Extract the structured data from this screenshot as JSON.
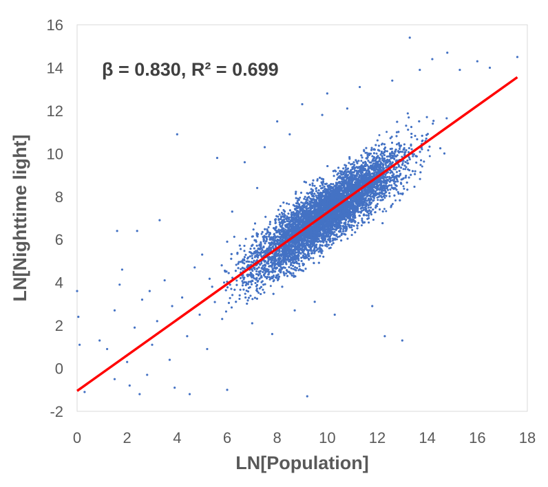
{
  "chart_data": {
    "type": "scatter",
    "title": "",
    "xlabel": "LN[Population]",
    "ylabel": "LN[Nighttime light]",
    "xlim": [
      0,
      18
    ],
    "ylim": [
      -2,
      16
    ],
    "xticks": [
      0,
      2,
      4,
      6,
      8,
      10,
      12,
      14,
      16,
      18
    ],
    "yticks": [
      -2,
      0,
      2,
      4,
      6,
      8,
      10,
      12,
      14,
      16
    ],
    "grid": false,
    "annotation": "β = 0.830, R² = 0.699",
    "marker_color": "#4472C4",
    "line_color": "#FF0000",
    "trendline": {
      "slope": 0.83,
      "intercept": -1.05,
      "x_range": [
        0,
        17.6
      ]
    },
    "series": [
      {
        "points": [
          [
            0.0,
            3.6
          ],
          [
            0.05,
            2.4
          ],
          [
            0.1,
            1.1
          ],
          [
            0.3,
            -1.1
          ],
          [
            0.9,
            1.3
          ],
          [
            1.2,
            0.9
          ],
          [
            1.5,
            -0.5
          ],
          [
            1.5,
            2.7
          ],
          [
            1.6,
            6.4
          ],
          [
            1.7,
            3.9
          ],
          [
            1.8,
            4.6
          ],
          [
            2.0,
            0.3
          ],
          [
            2.1,
            -0.8
          ],
          [
            2.3,
            1.9
          ],
          [
            2.4,
            6.4
          ],
          [
            2.5,
            -1.2
          ],
          [
            2.6,
            3.2
          ],
          [
            2.8,
            -0.3
          ],
          [
            2.9,
            3.6
          ],
          [
            3.0,
            1.1
          ],
          [
            3.2,
            2.2
          ],
          [
            3.3,
            6.9
          ],
          [
            3.5,
            4.1
          ],
          [
            3.7,
            0.4
          ],
          [
            3.8,
            2.9
          ],
          [
            3.9,
            -0.9
          ],
          [
            4.0,
            10.9
          ],
          [
            4.2,
            3.3
          ],
          [
            4.4,
            1.5
          ],
          [
            4.5,
            -1.2
          ],
          [
            4.7,
            4.7
          ],
          [
            4.9,
            2.5
          ],
          [
            5.0,
            5.3
          ],
          [
            5.2,
            0.9
          ],
          [
            5.4,
            3.8
          ],
          [
            5.6,
            9.8
          ],
          [
            5.8,
            2.3
          ],
          [
            6.0,
            -1.0
          ],
          [
            6.0,
            5.9
          ],
          [
            6.2,
            7.3
          ],
          [
            6.5,
            3.4
          ],
          [
            6.7,
            9.6
          ],
          [
            7.0,
            2.1
          ],
          [
            7.2,
            8.4
          ],
          [
            7.5,
            10.3
          ],
          [
            7.8,
            1.6
          ],
          [
            8.0,
            11.5
          ],
          [
            8.2,
            3.8
          ],
          [
            8.5,
            10.9
          ],
          [
            8.7,
            2.7
          ],
          [
            9.0,
            12.3
          ],
          [
            9.2,
            -1.3
          ],
          [
            9.5,
            3.1
          ],
          [
            9.8,
            11.8
          ],
          [
            10.0,
            12.8
          ],
          [
            10.3,
            2.5
          ],
          [
            10.8,
            12.1
          ],
          [
            11.3,
            13.1
          ],
          [
            11.8,
            2.9
          ],
          [
            12.3,
            1.5
          ],
          [
            12.6,
            13.4
          ],
          [
            13.0,
            1.3
          ],
          [
            13.3,
            15.4
          ],
          [
            13.7,
            13.9
          ],
          [
            14.2,
            14.4
          ],
          [
            14.8,
            14.7
          ],
          [
            15.3,
            13.9
          ],
          [
            16.0,
            14.3
          ],
          [
            16.5,
            14.0
          ],
          [
            17.6,
            14.5
          ]
        ]
      }
    ]
  }
}
